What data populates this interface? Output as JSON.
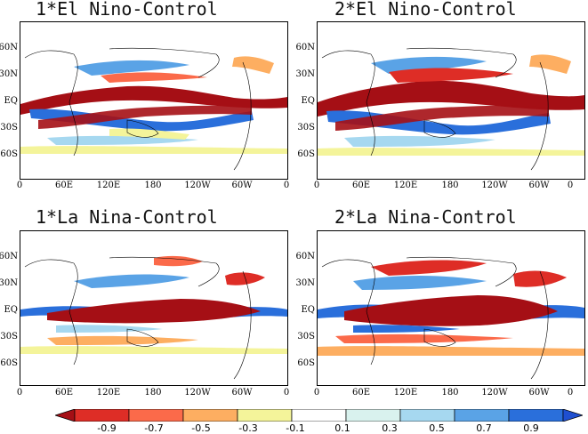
{
  "panels": [
    {
      "title": "1*El Nino-Control"
    },
    {
      "title": "2*El Nino-Control"
    },
    {
      "title": "1*La Nina-Control"
    },
    {
      "title": "2*La Nina-Control"
    }
  ],
  "lat_labels": [
    "60N",
    "30N",
    "EQ",
    "30S",
    "60S"
  ],
  "lon_labels": [
    "0",
    "60E",
    "120E",
    "180",
    "120W",
    "60W",
    "0"
  ],
  "colorbar": {
    "labels": [
      "-0.9",
      "-0.7",
      "-0.5",
      "-0.3",
      "-0.1",
      "0.1",
      "0.3",
      "0.5",
      "0.7",
      "0.9"
    ],
    "colors": [
      "#a50f15",
      "#de2d26",
      "#fb6a4a",
      "#fdae61",
      "#f4f49a",
      "#ffffff",
      "#d9f2ee",
      "#a6d8f0",
      "#5aa3e6",
      "#2a6fdb",
      "#1f4fd0"
    ]
  }
}
